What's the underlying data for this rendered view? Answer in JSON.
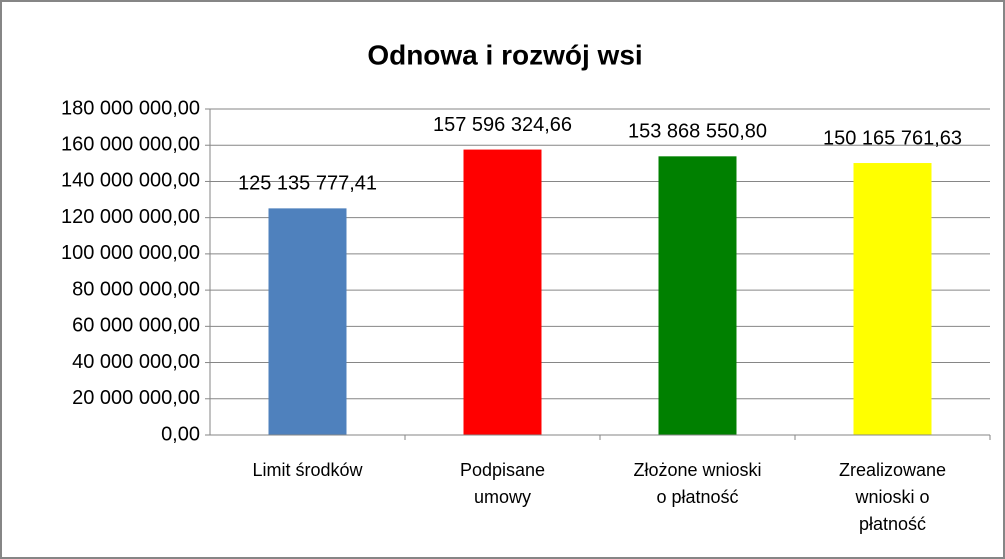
{
  "chart_data": {
    "type": "bar",
    "title": "Odnowa i rozwój wsi",
    "categories": [
      "Limit środków",
      "Podpisane\numowy",
      "Złożone wnioski\no płatność",
      "Zrealizowane\nwnioski o\npłatność"
    ],
    "values": [
      125135777.41,
      157596324.66,
      153868550.8,
      150165761.63
    ],
    "value_labels": [
      "125 135 777,41",
      "157 596 324,66",
      "153 868 550,80",
      "150 165 761,63"
    ],
    "colors": [
      "#4f81bd",
      "#ff0000",
      "#008000",
      "#ffff00"
    ],
    "ylim": [
      0,
      180000000
    ],
    "yticks": [
      {
        "value": 0,
        "label": "0,00"
      },
      {
        "value": 20000000,
        "label": "20 000 000,00"
      },
      {
        "value": 40000000,
        "label": "40 000 000,00"
      },
      {
        "value": 60000000,
        "label": "60 000 000,00"
      },
      {
        "value": 80000000,
        "label": "80 000 000,00"
      },
      {
        "value": 100000000,
        "label": "100 000 000,00"
      },
      {
        "value": 120000000,
        "label": "120 000 000,00"
      },
      {
        "value": 140000000,
        "label": "140 000 000,00"
      },
      {
        "value": 160000000,
        "label": "160 000 000,00"
      },
      {
        "value": 180000000,
        "label": "180 000 000,00"
      }
    ],
    "grid": true
  }
}
